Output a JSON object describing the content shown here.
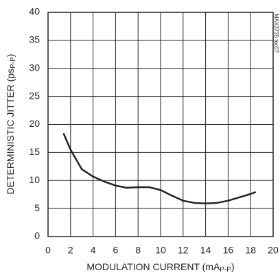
{
  "chart_data": {
    "type": "line",
    "x_label": [
      "MODULATION CURRENT (mA",
      "P-P",
      ")"
    ],
    "y_label": [
      "DETERMINISTIC JITTER (ps",
      "P-P",
      ")"
    ],
    "note": "MAX3735 toc07",
    "x": [
      1.4,
      2,
      3,
      4,
      5,
      6,
      7,
      8,
      9,
      10,
      11,
      12,
      13,
      14,
      15,
      16,
      17,
      18,
      18.4
    ],
    "series": [
      {
        "color": "#222222",
        "values": [
          18.3,
          15.5,
          12,
          10.7,
          9.8,
          9.1,
          8.7,
          8.8,
          8.8,
          8.3,
          7.3,
          6.4,
          6.0,
          5.9,
          6.0,
          6.4,
          7.0,
          7.6,
          7.9
        ]
      }
    ],
    "xlim": [
      0,
      20
    ],
    "xticks": [
      0,
      2,
      4,
      6,
      8,
      10,
      12,
      14,
      16,
      18,
      20
    ],
    "ylim": [
      0,
      40
    ],
    "yticks": [
      0,
      5,
      10,
      15,
      20,
      25,
      30,
      35,
      40
    ],
    "grid": true
  }
}
